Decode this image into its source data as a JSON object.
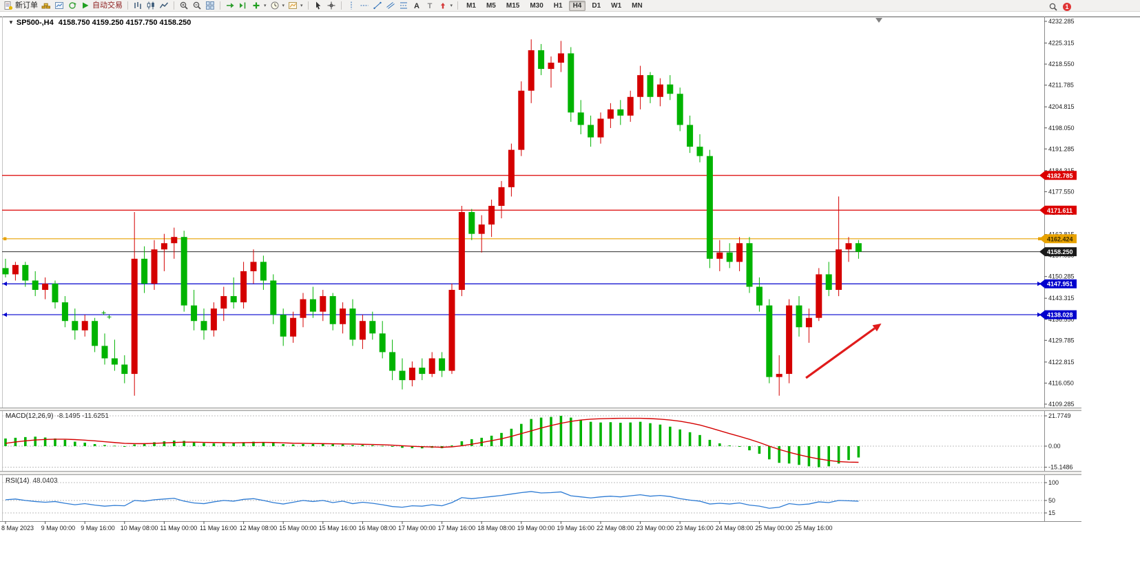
{
  "toolbar": {
    "groups": [
      {
        "name": "trade",
        "items": [
          {
            "name": "new-order-button",
            "icon": "new-order",
            "label": "新订单"
          },
          {
            "name": "quotes-button",
            "icon": "gold"
          },
          {
            "name": "chart-window-button",
            "icon": "chart-window"
          },
          {
            "name": "refresh-button",
            "icon": "refresh"
          },
          {
            "name": "autotrade-button",
            "icon": "play",
            "label": "自动交易",
            "label_color": "#8b1a1a"
          }
        ]
      },
      {
        "name": "chart-type",
        "items": [
          {
            "name": "bar-chart-button",
            "icon": "bars"
          },
          {
            "name": "candlestick-button",
            "icon": "candles"
          },
          {
            "name": "line-chart-button",
            "icon": "linechart"
          }
        ]
      },
      {
        "name": "zoom",
        "items": [
          {
            "name": "zoom-in-button",
            "icon": "zoom-in"
          },
          {
            "name": "zoom-out-button",
            "icon": "zoom-out"
          },
          {
            "name": "tile-windows-button",
            "icon": "grid"
          }
        ]
      },
      {
        "name": "navigate",
        "items": [
          {
            "name": "auto-scroll-button",
            "icon": "autoscroll"
          },
          {
            "name": "chart-shift-button",
            "icon": "shift"
          },
          {
            "name": "indicators-button",
            "icon": "plus",
            "dropdown": true
          },
          {
            "name": "periods-button",
            "icon": "clock",
            "dropdown": true
          },
          {
            "name": "templates-button",
            "icon": "template",
            "dropdown": true
          }
        ]
      },
      {
        "name": "pointer",
        "items": [
          {
            "name": "cursor-button",
            "icon": "cursor"
          },
          {
            "name": "crosshair-button",
            "icon": "crosshair"
          }
        ]
      },
      {
        "name": "draw",
        "items": [
          {
            "name": "vertical-line-button",
            "icon": "vline"
          },
          {
            "name": "horizontal-line-button",
            "icon": "hline"
          },
          {
            "name": "trendline-button",
            "icon": "trendline"
          },
          {
            "name": "channel-button",
            "icon": "channel"
          },
          {
            "name": "fibonacci-button",
            "icon": "fibo"
          },
          {
            "name": "text-button",
            "icon": "textA"
          },
          {
            "name": "text-label-button",
            "icon": "textT"
          },
          {
            "name": "arrows-button",
            "icon": "arrows",
            "dropdown": true
          }
        ]
      }
    ],
    "timeframes": [
      "M1",
      "M5",
      "M15",
      "M30",
      "H1",
      "H4",
      "D1",
      "W1",
      "MN"
    ],
    "active_timeframe": "H4",
    "right": {
      "badge": "1"
    }
  },
  "window": {
    "title_symbol": "SP500-,H4",
    "title_ohlc": "4158.750 4159.250 4157.750 4158.250"
  },
  "chart_data": {
    "type": "candlestick",
    "symbol": "SP500-",
    "timeframe": "H4",
    "up_color": "#d40000",
    "down_color": "#00b300",
    "candles": [
      [
        4153,
        4156,
        4150,
        4151
      ],
      [
        4151,
        4155,
        4149,
        4154
      ],
      [
        4154,
        4155,
        4147,
        4149
      ],
      [
        4149,
        4152,
        4144,
        4146
      ],
      [
        4146,
        4150,
        4143,
        4148
      ],
      [
        4148,
        4149,
        4140,
        4142
      ],
      [
        4142,
        4144,
        4134,
        4136
      ],
      [
        4136,
        4140,
        4130,
        4133
      ],
      [
        4133,
        4138,
        4131,
        4136
      ],
      [
        4136,
        4137,
        4126,
        4128
      ],
      [
        4128,
        4132,
        4122,
        4124
      ],
      [
        4124,
        4130,
        4120,
        4122
      ],
      [
        4122,
        4125,
        4116,
        4119
      ],
      [
        4119,
        4171,
        4112,
        4156
      ],
      [
        4156,
        4160,
        4145,
        4148
      ],
      [
        4148,
        4162,
        4146,
        4159
      ],
      [
        4159,
        4164,
        4152,
        4161
      ],
      [
        4161,
        4166,
        4156,
        4163
      ],
      [
        4163,
        4165,
        4139,
        4141
      ],
      [
        4141,
        4146,
        4133,
        4136
      ],
      [
        4136,
        4140,
        4130,
        4133
      ],
      [
        4133,
        4142,
        4131,
        4140
      ],
      [
        4140,
        4147,
        4136,
        4144
      ],
      [
        4144,
        4150,
        4140,
        4142
      ],
      [
        4142,
        4155,
        4140,
        4152
      ],
      [
        4152,
        4159,
        4148,
        4155
      ],
      [
        4155,
        4157,
        4146,
        4149
      ],
      [
        4149,
        4151,
        4135,
        4138
      ],
      [
        4138,
        4140,
        4128,
        4131
      ],
      [
        4131,
        4139,
        4129,
        4137
      ],
      [
        4137,
        4145,
        4134,
        4143
      ],
      [
        4143,
        4147,
        4137,
        4139
      ],
      [
        4139,
        4146,
        4136,
        4144
      ],
      [
        4144,
        4145,
        4133,
        4135
      ],
      [
        4135,
        4142,
        4132,
        4140
      ],
      [
        4140,
        4143,
        4128,
        4130
      ],
      [
        4130,
        4138,
        4127,
        4136
      ],
      [
        4136,
        4139,
        4130,
        4132
      ],
      [
        4132,
        4136,
        4124,
        4126
      ],
      [
        4126,
        4130,
        4117,
        4120
      ],
      [
        4120,
        4124,
        4114,
        4117
      ],
      [
        4117,
        4123,
        4115,
        4121
      ],
      [
        4121,
        4124,
        4117,
        4119
      ],
      [
        4119,
        4126,
        4118,
        4124
      ],
      [
        4124,
        4126,
        4118,
        4120
      ],
      [
        4120,
        4148,
        4119,
        4146
      ],
      [
        4146,
        4173,
        4144,
        4171
      ],
      [
        4171,
        4172,
        4162,
        4164
      ],
      [
        4164,
        4170,
        4158,
        4167
      ],
      [
        4167,
        4175,
        4163,
        4173
      ],
      [
        4173,
        4181,
        4169,
        4179
      ],
      [
        4179,
        4193,
        4176,
        4191
      ],
      [
        4191,
        4213,
        4189,
        4210
      ],
      [
        4210,
        4226.5,
        4206,
        4223
      ],
      [
        4223,
        4225,
        4215,
        4217
      ],
      [
        4217,
        4221,
        4211,
        4219
      ],
      [
        4219,
        4226,
        4216,
        4222
      ],
      [
        4222,
        4224,
        4200,
        4203
      ],
      [
        4203,
        4207,
        4196,
        4199
      ],
      [
        4199,
        4202,
        4192,
        4195
      ],
      [
        4195,
        4203,
        4193,
        4201
      ],
      [
        4201,
        4206,
        4198,
        4204
      ],
      [
        4204,
        4207,
        4199,
        4202
      ],
      [
        4202,
        4210,
        4200,
        4208
      ],
      [
        4208,
        4218,
        4204,
        4215
      ],
      [
        4215,
        4216,
        4206,
        4208
      ],
      [
        4208,
        4214,
        4205,
        4212
      ],
      [
        4212,
        4215,
        4207,
        4209
      ],
      [
        4209,
        4211,
        4197,
        4199
      ],
      [
        4199,
        4202,
        4190,
        4192
      ],
      [
        4192,
        4196,
        4187,
        4189
      ],
      [
        4189,
        4191,
        4153,
        4156
      ],
      [
        4156,
        4162,
        4152,
        4158
      ],
      [
        4158,
        4161,
        4153,
        4155
      ],
      [
        4155,
        4163,
        4152,
        4161
      ],
      [
        4161,
        4163,
        4145,
        4147
      ],
      [
        4147,
        4150,
        4139,
        4141
      ],
      [
        4141,
        4143,
        4116,
        4118
      ],
      [
        4118,
        4125,
        4112,
        4119
      ],
      [
        4119,
        4143,
        4116,
        4141
      ],
      [
        4141,
        4144,
        4131,
        4134
      ],
      [
        4134,
        4140,
        4129,
        4137
      ],
      [
        4137,
        4153,
        4136,
        4151
      ],
      [
        4151,
        4155,
        4144,
        4146
      ],
      [
        4146,
        4176,
        4144,
        4159
      ],
      [
        4159,
        4163,
        4155,
        4161
      ],
      [
        4161,
        4162,
        4156,
        4158.25
      ]
    ],
    "time_labels": [
      "8 May 2023",
      "9 May 00:00",
      "9 May 16:00",
      "10 May 08:00",
      "11 May 00:00",
      "11 May 16:00",
      "12 May 08:00",
      "15 May 00:00",
      "15 May 16:00",
      "16 May 08:00",
      "17 May 00:00",
      "17 May 16:00",
      "18 May 08:00",
      "19 May 00:00",
      "19 May 16:00",
      "22 May 08:00",
      "23 May 00:00",
      "23 May 16:00",
      "24 May 08:00",
      "25 May 00:00",
      "25 May 16:00"
    ],
    "candles_per_label": 4,
    "price_axis": {
      "min": 4109.285,
      "max": 4232.285,
      "ticks": [
        "4232.285",
        "4225.315",
        "4218.550",
        "4211.785",
        "4204.815",
        "4198.050",
        "4191.285",
        "4184.315",
        "4177.550",
        "4170.785",
        "4163.815",
        "4157.050",
        "4150.285",
        "4143.315",
        "4136.550",
        "4129.785",
        "4122.815",
        "4116.050",
        "4109.285"
      ]
    },
    "hlines": [
      {
        "name": "resistance-line-1",
        "price": 4182.785,
        "label": "4182.785",
        "color": "#dc0000",
        "tag_bg": "#dc0000",
        "tag_fg": "#ffffff",
        "markers": "none"
      },
      {
        "name": "resistance-line-2",
        "price": 4171.611,
        "label": "4171.611",
        "color": "#dc0000",
        "tag_bg": "#dc0000",
        "tag_fg": "#ffffff",
        "markers": "none"
      },
      {
        "name": "pivot-line",
        "price": 4162.424,
        "label": "4162.424",
        "color": "#e8a200",
        "tag_bg": "#e8a200",
        "tag_fg": "#3a2a00",
        "markers": "square"
      },
      {
        "name": "support-line-1",
        "price": 4147.951,
        "label": "4147.951",
        "color": "#0000cd",
        "tag_bg": "#0000cd",
        "tag_fg": "#ffffff",
        "markers": "arrow"
      },
      {
        "name": "support-line-2",
        "price": 4138.028,
        "label": "4138.028",
        "color": "#0000cd",
        "tag_bg": "#0000cd",
        "tag_fg": "#ffffff",
        "markers": "arrow"
      }
    ],
    "bid_line": {
      "price": 4158.25,
      "label": "4158.250",
      "color": "#2b2b2b",
      "tag_bg": "#1a1a1a",
      "tag_fg": "#ffffff"
    },
    "trend_arrow": {
      "color": "#e01b1b",
      "from": {
        "i": 80.7,
        "price": 4117.7
      },
      "to": {
        "i": 88.3,
        "price": 4135.2
      }
    },
    "objects": {
      "crosses": [
        {
          "i": 9.9,
          "price": 4138.6
        },
        {
          "i": 10.45,
          "price": 4137.3
        }
      ]
    }
  },
  "macd": {
    "label": "MACD(12,26,9)",
    "values": "-8.1495 -11.6251",
    "axis_labels": [
      "21.7749",
      "0.00",
      "-15.1486"
    ],
    "axis_values": [
      21.7749,
      0,
      -15.1486
    ],
    "hist_color": "#00b300",
    "signal_color": "#d40000",
    "histogram": [
      5.5,
      6.0,
      6.5,
      6.8,
      6.2,
      5.5,
      4.5,
      3.2,
      2.5,
      1.5,
      0.8,
      0.3,
      -0.5,
      1.2,
      2.0,
      2.8,
      3.5,
      4.0,
      3.8,
      3.0,
      2.2,
      2.0,
      2.2,
      2.3,
      2.8,
      3.2,
      3.0,
      2.2,
      1.5,
      1.2,
      1.5,
      1.5,
      1.8,
      1.4,
      1.2,
      0.8,
      0.8,
      0.6,
      0.2,
      -0.5,
      -1.2,
      -1.5,
      -1.6,
      -1.2,
      -1.5,
      0.5,
      3.5,
      5.0,
      6.0,
      7.5,
      9.5,
      12.5,
      16.0,
      19.5,
      20.5,
      21.0,
      21.8,
      20.5,
      19.0,
      17.5,
      17.0,
      17.2,
      16.8,
      17.0,
      17.5,
      16.5,
      15.5,
      14.0,
      12.0,
      10.0,
      8.0,
      4.5,
      2.0,
      0.5,
      -0.5,
      -3.0,
      -5.5,
      -9.5,
      -12.0,
      -12.5,
      -13.5,
      -14.5,
      -15.15,
      -14.5,
      -12.5,
      -10.0,
      -8.15
    ],
    "signal": [
      2.0,
      3.0,
      3.8,
      4.4,
      4.8,
      5.0,
      5.0,
      4.7,
      4.3,
      3.8,
      3.2,
      2.6,
      2.0,
      1.8,
      1.8,
      2.0,
      2.3,
      2.6,
      2.9,
      2.9,
      2.7,
      2.6,
      2.5,
      2.4,
      2.5,
      2.6,
      2.7,
      2.6,
      2.4,
      2.1,
      2.0,
      1.9,
      1.8,
      1.7,
      1.6,
      1.5,
      1.3,
      1.2,
      1.0,
      0.7,
      0.3,
      -0.1,
      -0.4,
      -0.6,
      -0.8,
      -0.5,
      0.3,
      1.4,
      2.6,
      3.9,
      5.3,
      7.0,
      9.0,
      11.0,
      13.0,
      14.8,
      16.4,
      17.8,
      18.8,
      19.4,
      19.7,
      19.9,
      20.0,
      20.0,
      20.0,
      19.8,
      19.4,
      18.8,
      17.9,
      16.7,
      15.2,
      13.2,
      11.1,
      9.0,
      7.0,
      4.9,
      2.6,
      0.0,
      -2.4,
      -4.4,
      -6.2,
      -7.8,
      -9.2,
      -10.3,
      -11.1,
      -11.5,
      -11.63
    ]
  },
  "rsi": {
    "label": "RSI(14)",
    "value": "48.0403",
    "axis_labels": [
      "100",
      "50",
      "15"
    ],
    "axis_values": [
      100,
      50,
      15
    ],
    "line_color": "#2d7bd4",
    "values": [
      52,
      54,
      50,
      47,
      45,
      47,
      42,
      38,
      41,
      37,
      34,
      36,
      35,
      50,
      48,
      52,
      54,
      56,
      48,
      43,
      41,
      46,
      50,
      48,
      53,
      55,
      50,
      44,
      40,
      45,
      50,
      47,
      50,
      44,
      48,
      41,
      45,
      42,
      38,
      33,
      31,
      35,
      34,
      38,
      35,
      44,
      58,
      55,
      58,
      61,
      64,
      68,
      72,
      75,
      71,
      72,
      74,
      63,
      60,
      57,
      60,
      62,
      60,
      63,
      66,
      62,
      64,
      61,
      55,
      51,
      48,
      40,
      42,
      40,
      43,
      37,
      34,
      28,
      31,
      41,
      38,
      40,
      46,
      44,
      50,
      49,
      48
    ]
  }
}
